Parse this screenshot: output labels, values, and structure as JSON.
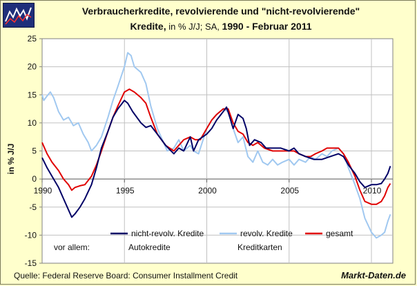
{
  "title_line1": "Verbraucherkredite, revolvierende und \"nicht-revolvierende\"",
  "title_line2_bold": "Kredite,",
  "title_line2_units": " in % J/J; SA, ",
  "title_line2_period": "1990 - Februar 2011",
  "source": "Quelle: Federal Reserve Board: Consumer Installment Credit",
  "brand": "Markt-Daten.de",
  "colors": {
    "background": "#FFFFCC",
    "plot_bg": "#FFFFFF",
    "grid": "#C0C0C0"
  },
  "chart_data": {
    "type": "line",
    "title": "Verbraucherkredite, revolvierende und \"nicht-revolvierende\" Kredite, in % J/J; SA, 1990 - Februar 2011",
    "xlabel": "",
    "ylabel": "in % J/J",
    "xlim": [
      1990,
      2011.3
    ],
    "ylim": [
      -15,
      25
    ],
    "y_ticks": [
      25,
      20,
      15,
      10,
      5,
      0,
      -5,
      -10,
      -15
    ],
    "x_ticks": [
      1990,
      1995,
      2000,
      2005,
      2010
    ],
    "y_tick_labels": [
      "25",
      "20",
      "15",
      "10",
      "5",
      "0",
      "-5",
      "-10",
      "-15"
    ],
    "x_tick_labels": [
      "1990",
      "1995",
      "2000",
      "2005",
      "2010"
    ],
    "grid": true,
    "legend_row_label": "vor allem:",
    "series": [
      {
        "name": "nicht-revolv. Kredite",
        "subtitle": "Autokredite",
        "color": "#000066",
        "points": [
          [
            1990.0,
            3.8
          ],
          [
            1990.3,
            2.0
          ],
          [
            1990.6,
            0.5
          ],
          [
            1991.0,
            -1.5
          ],
          [
            1991.3,
            -3.5
          ],
          [
            1991.6,
            -5.5
          ],
          [
            1991.8,
            -6.8
          ],
          [
            1992.0,
            -6.2
          ],
          [
            1992.3,
            -5.0
          ],
          [
            1992.6,
            -3.5
          ],
          [
            1993.0,
            -1.0
          ],
          [
            1993.3,
            2.0
          ],
          [
            1993.6,
            5.5
          ],
          [
            1994.0,
            8.5
          ],
          [
            1994.3,
            11.0
          ],
          [
            1994.6,
            12.5
          ],
          [
            1995.0,
            14.0
          ],
          [
            1995.2,
            13.5
          ],
          [
            1995.5,
            12.0
          ],
          [
            1996.0,
            10.0
          ],
          [
            1996.3,
            9.2
          ],
          [
            1996.6,
            9.5
          ],
          [
            1997.0,
            8.0
          ],
          [
            1997.5,
            6.0
          ],
          [
            1998.0,
            4.5
          ],
          [
            1998.3,
            5.5
          ],
          [
            1998.6,
            5.0
          ],
          [
            1999.0,
            7.5
          ],
          [
            1999.2,
            5.0
          ],
          [
            1999.5,
            7.0
          ],
          [
            2000.0,
            8.0
          ],
          [
            2000.3,
            9.0
          ],
          [
            2000.6,
            10.5
          ],
          [
            2001.0,
            12.0
          ],
          [
            2001.2,
            12.8
          ],
          [
            2001.4,
            11.0
          ],
          [
            2001.6,
            9.0
          ],
          [
            2001.9,
            11.5
          ],
          [
            2002.2,
            10.8
          ],
          [
            2002.4,
            9.0
          ],
          [
            2002.6,
            6.0
          ],
          [
            2002.9,
            7.0
          ],
          [
            2003.3,
            6.5
          ],
          [
            2003.6,
            5.5
          ],
          [
            2004.0,
            5.5
          ],
          [
            2004.5,
            5.5
          ],
          [
            2005.0,
            5.0
          ],
          [
            2005.3,
            5.5
          ],
          [
            2005.6,
            4.5
          ],
          [
            2006.0,
            4.0
          ],
          [
            2006.5,
            3.5
          ],
          [
            2007.0,
            3.5
          ],
          [
            2007.5,
            4.0
          ],
          [
            2008.0,
            4.5
          ],
          [
            2008.3,
            4.0
          ],
          [
            2008.6,
            2.5
          ],
          [
            2009.0,
            1.0
          ],
          [
            2009.3,
            -0.5
          ],
          [
            2009.6,
            -1.5
          ],
          [
            2010.0,
            -1.0
          ],
          [
            2010.3,
            -1.0
          ],
          [
            2010.6,
            -0.8
          ],
          [
            2010.8,
            0.0
          ],
          [
            2011.0,
            1.0
          ],
          [
            2011.15,
            2.3
          ]
        ]
      },
      {
        "name": "revolv. Kredite",
        "subtitle": "Kreditkarten",
        "color": "#A0C8F0",
        "points": [
          [
            1990.0,
            15.0
          ],
          [
            1990.1,
            14.0
          ],
          [
            1990.3,
            14.8
          ],
          [
            1990.5,
            15.5
          ],
          [
            1990.7,
            14.5
          ],
          [
            1991.0,
            12.0
          ],
          [
            1991.3,
            10.5
          ],
          [
            1991.6,
            11.0
          ],
          [
            1991.9,
            9.5
          ],
          [
            1992.2,
            10.0
          ],
          [
            1992.5,
            8.0
          ],
          [
            1992.8,
            6.5
          ],
          [
            1993.0,
            5.0
          ],
          [
            1993.3,
            6.0
          ],
          [
            1993.6,
            7.5
          ],
          [
            1994.0,
            11.0
          ],
          [
            1994.3,
            14.0
          ],
          [
            1994.6,
            16.5
          ],
          [
            1995.0,
            20.0
          ],
          [
            1995.2,
            22.5
          ],
          [
            1995.4,
            22.0
          ],
          [
            1995.6,
            20.0
          ],
          [
            1996.0,
            19.0
          ],
          [
            1996.3,
            17.0
          ],
          [
            1996.6,
            13.0
          ],
          [
            1997.0,
            9.0
          ],
          [
            1997.3,
            7.0
          ],
          [
            1997.6,
            5.0
          ],
          [
            1998.0,
            5.5
          ],
          [
            1998.3,
            7.0
          ],
          [
            1998.6,
            5.0
          ],
          [
            1999.0,
            6.0
          ],
          [
            1999.2,
            5.0
          ],
          [
            1999.5,
            4.5
          ],
          [
            2000.0,
            9.0
          ],
          [
            2000.3,
            10.5
          ],
          [
            2000.6,
            11.5
          ],
          [
            2001.0,
            12.5
          ],
          [
            2001.3,
            12.0
          ],
          [
            2001.6,
            9.0
          ],
          [
            2001.9,
            6.5
          ],
          [
            2002.2,
            7.5
          ],
          [
            2002.5,
            4.0
          ],
          [
            2002.8,
            3.0
          ],
          [
            2003.1,
            5.0
          ],
          [
            2003.4,
            3.0
          ],
          [
            2003.7,
            2.5
          ],
          [
            2004.0,
            3.5
          ],
          [
            2004.3,
            2.5
          ],
          [
            2004.6,
            3.0
          ],
          [
            2005.0,
            3.5
          ],
          [
            2005.3,
            2.5
          ],
          [
            2005.6,
            3.5
          ],
          [
            2006.0,
            3.0
          ],
          [
            2006.3,
            4.0
          ],
          [
            2006.6,
            3.5
          ],
          [
            2007.0,
            4.5
          ],
          [
            2007.3,
            4.0
          ],
          [
            2007.6,
            5.0
          ],
          [
            2008.0,
            5.5
          ],
          [
            2008.3,
            4.5
          ],
          [
            2008.6,
            2.0
          ],
          [
            2009.0,
            -1.0
          ],
          [
            2009.3,
            -3.5
          ],
          [
            2009.6,
            -7.0
          ],
          [
            2010.0,
            -9.5
          ],
          [
            2010.3,
            -10.5
          ],
          [
            2010.6,
            -10.0
          ],
          [
            2010.8,
            -9.5
          ],
          [
            2011.0,
            -7.5
          ],
          [
            2011.15,
            -6.3
          ]
        ]
      },
      {
        "name": "gesamt",
        "subtitle": "",
        "color": "#E00000",
        "points": [
          [
            1990.0,
            6.5
          ],
          [
            1990.3,
            4.5
          ],
          [
            1990.6,
            3.0
          ],
          [
            1991.0,
            1.5
          ],
          [
            1991.3,
            0.0
          ],
          [
            1991.6,
            -1.0
          ],
          [
            1991.8,
            -2.0
          ],
          [
            1992.0,
            -1.5
          ],
          [
            1992.3,
            -1.2
          ],
          [
            1992.6,
            -1.0
          ],
          [
            1993.0,
            0.5
          ],
          [
            1993.3,
            2.5
          ],
          [
            1993.6,
            5.0
          ],
          [
            1994.0,
            8.5
          ],
          [
            1994.3,
            11.0
          ],
          [
            1994.6,
            13.0
          ],
          [
            1995.0,
            15.5
          ],
          [
            1995.3,
            16.0
          ],
          [
            1995.6,
            15.5
          ],
          [
            1996.0,
            14.5
          ],
          [
            1996.3,
            13.5
          ],
          [
            1996.6,
            11.0
          ],
          [
            1997.0,
            8.0
          ],
          [
            1997.5,
            6.0
          ],
          [
            1998.0,
            5.0
          ],
          [
            1998.3,
            6.0
          ],
          [
            1998.6,
            7.0
          ],
          [
            1999.0,
            7.5
          ],
          [
            1999.3,
            7.0
          ],
          [
            1999.6,
            7.0
          ],
          [
            2000.0,
            9.0
          ],
          [
            2000.3,
            10.5
          ],
          [
            2000.6,
            11.5
          ],
          [
            2001.0,
            12.5
          ],
          [
            2001.3,
            12.5
          ],
          [
            2001.6,
            10.0
          ],
          [
            2001.9,
            8.5
          ],
          [
            2002.2,
            8.0
          ],
          [
            2002.5,
            6.5
          ],
          [
            2002.8,
            6.0
          ],
          [
            2003.1,
            6.5
          ],
          [
            2003.5,
            5.5
          ],
          [
            2004.0,
            5.0
          ],
          [
            2004.5,
            5.0
          ],
          [
            2005.0,
            5.0
          ],
          [
            2005.3,
            5.0
          ],
          [
            2005.6,
            4.5
          ],
          [
            2006.0,
            4.0
          ],
          [
            2006.3,
            4.0
          ],
          [
            2006.6,
            4.5
          ],
          [
            2007.0,
            5.0
          ],
          [
            2007.3,
            5.5
          ],
          [
            2007.6,
            5.5
          ],
          [
            2008.0,
            5.5
          ],
          [
            2008.3,
            4.5
          ],
          [
            2008.6,
            3.0
          ],
          [
            2009.0,
            0.5
          ],
          [
            2009.3,
            -2.0
          ],
          [
            2009.6,
            -4.0
          ],
          [
            2010.0,
            -4.5
          ],
          [
            2010.3,
            -4.5
          ],
          [
            2010.6,
            -4.0
          ],
          [
            2010.8,
            -3.0
          ],
          [
            2011.0,
            -1.5
          ],
          [
            2011.15,
            -0.8
          ]
        ]
      }
    ]
  }
}
